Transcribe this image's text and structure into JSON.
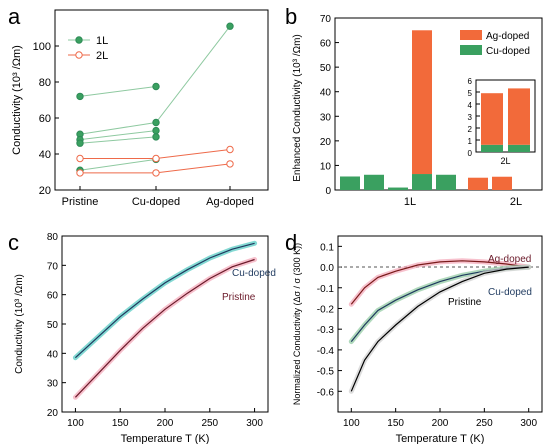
{
  "colors": {
    "green": "#2e8b57",
    "green_fill": "#3aa060",
    "green_light": "#8ec9a0",
    "orange": "#ee6a4a",
    "orange_bar": "#f26a3a",
    "pink": "#f4a6b8",
    "cyan": "#4ec9c0",
    "navy": "#1f3a5f",
    "maroon": "#6b1a2a",
    "axis": "#000000"
  },
  "chart_data": [
    {
      "panel": "a",
      "type": "line",
      "ylabel": "Conductivity (10³ /Ωm)",
      "xlabel": "",
      "categories": [
        "Pristine",
        "Cu-doped",
        "Ag-doped"
      ],
      "ylim": [
        20,
        120
      ],
      "yticks": [
        "20",
        "40",
        "60",
        "80",
        "100"
      ],
      "legend": [
        "1L",
        "2L"
      ],
      "legend_position": "top-left",
      "series": [
        {
          "name": "1L",
          "points": [
            [
              0,
              72
            ],
            [
              1,
              77.5
            ]
          ]
        },
        {
          "name": "1L",
          "points": [
            [
              0,
              51
            ],
            [
              1,
              57.5
            ],
            [
              2,
              111
            ]
          ]
        },
        {
          "name": "1L",
          "points": [
            [
              0,
              48
            ],
            [
              1,
              53
            ]
          ]
        },
        {
          "name": "1L",
          "points": [
            [
              0,
              46
            ],
            [
              1,
              49.5
            ]
          ]
        },
        {
          "name": "1L",
          "points": [
            [
              0,
              31
            ],
            [
              1,
              37
            ]
          ]
        },
        {
          "name": "2L",
          "points": [
            [
              0,
              37.5
            ],
            [
              1,
              37.5
            ],
            [
              2,
              42.5
            ]
          ]
        },
        {
          "name": "2L",
          "points": [
            [
              0,
              29.5
            ],
            [
              1,
              29.5
            ],
            [
              2,
              34.5
            ]
          ]
        }
      ]
    },
    {
      "panel": "b",
      "type": "bar",
      "ylabel": "Enhanced Conductivity (10³ /Ωm)",
      "ylim": [
        0,
        70
      ],
      "yticks": [
        "0",
        "10",
        "20",
        "30",
        "40",
        "50",
        "60",
        "70"
      ],
      "group_labels": [
        "1L",
        "2L"
      ],
      "legend": [
        "Ag-doped",
        "Cu-doped"
      ],
      "legend_position": "top-right",
      "bars": [
        {
          "group": "1L",
          "cu": 5.5,
          "ag": 0
        },
        {
          "group": "1L",
          "cu": 6.2,
          "ag": 0
        },
        {
          "group": "1L",
          "cu": 1.0,
          "ag": 0
        },
        {
          "group": "1L",
          "cu": 6.5,
          "ag": 58.5
        },
        {
          "group": "1L",
          "cu": 6.2,
          "ag": 0
        },
        {
          "group": "2L",
          "cu": 0,
          "ag": 5.0
        },
        {
          "group": "2L",
          "cu": 0,
          "ag": 5.4
        }
      ],
      "inset": {
        "ylim": [
          0,
          6
        ],
        "yticks": [
          "0",
          "1",
          "2",
          "3",
          "4",
          "5",
          "6"
        ],
        "xlabel": "2L",
        "bars": [
          {
            "cu": 0.6,
            "ag": 4.3
          },
          {
            "cu": 0.6,
            "ag": 4.7
          }
        ]
      }
    },
    {
      "panel": "c",
      "type": "line",
      "xlabel": "Temperature T (K)",
      "ylabel": "Conductivity (10³ /Ωm)",
      "xlim": [
        85,
        315
      ],
      "ylim": [
        20,
        80
      ],
      "xticks": [
        "100",
        "150",
        "200",
        "250",
        "300"
      ],
      "yticks": [
        "20",
        "30",
        "40",
        "50",
        "60",
        "70",
        "80"
      ],
      "series": [
        {
          "name": "Cu-doped",
          "x": [
            100,
            125,
            150,
            175,
            200,
            225,
            250,
            275,
            300
          ],
          "y": [
            38.5,
            45.5,
            52.5,
            58.5,
            64.0,
            68.5,
            72.5,
            75.5,
            77.5
          ]
        },
        {
          "name": "Pristine",
          "x": [
            100,
            125,
            150,
            175,
            200,
            225,
            250,
            275,
            300
          ],
          "y": [
            25.0,
            33.0,
            41.0,
            48.5,
            55.0,
            60.5,
            65.5,
            69.5,
            72.0
          ]
        }
      ]
    },
    {
      "panel": "d",
      "type": "line",
      "xlabel": "Temperature T (K)",
      "ylabel": "Normalized Conductivity (Δσ / σ (300 K))",
      "xlim": [
        85,
        315
      ],
      "ylim": [
        -0.7,
        0.15
      ],
      "xticks": [
        "100",
        "150",
        "200",
        "250",
        "300"
      ],
      "yticks": [
        "-0.6",
        "-0.5",
        "-0.4",
        "-0.3",
        "-0.2",
        "-0.1",
        "0.0",
        "0.1"
      ],
      "reference_line": 0.0,
      "series": [
        {
          "name": "Ag-doped",
          "x": [
            100,
            115,
            130,
            150,
            175,
            200,
            225,
            250,
            275,
            300
          ],
          "y": [
            -0.18,
            -0.1,
            -0.05,
            -0.02,
            0.01,
            0.025,
            0.03,
            0.025,
            0.015,
            0.0
          ]
        },
        {
          "name": "Cu-doped",
          "x": [
            100,
            115,
            130,
            150,
            175,
            200,
            225,
            250,
            275,
            300
          ],
          "y": [
            -0.36,
            -0.28,
            -0.21,
            -0.16,
            -0.11,
            -0.07,
            -0.04,
            -0.02,
            -0.005,
            0.0
          ]
        },
        {
          "name": "Pristine",
          "x": [
            100,
            115,
            130,
            150,
            175,
            200,
            225,
            250,
            275,
            300
          ],
          "y": [
            -0.6,
            -0.45,
            -0.36,
            -0.28,
            -0.19,
            -0.12,
            -0.07,
            -0.03,
            -0.01,
            0.0
          ]
        }
      ]
    }
  ]
}
